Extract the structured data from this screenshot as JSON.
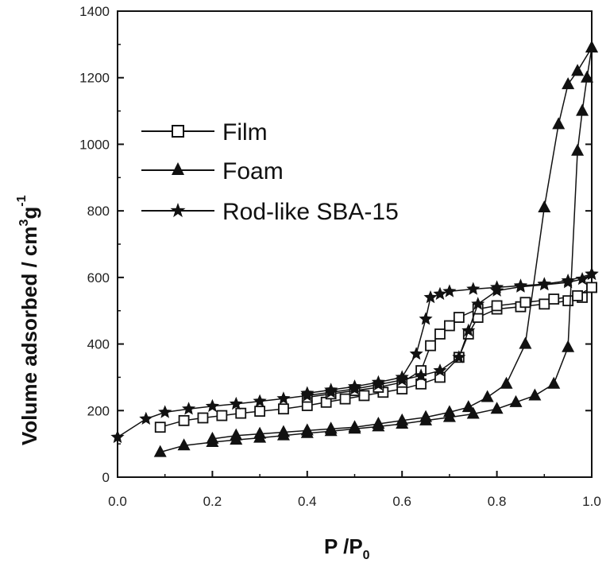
{
  "chart_data": {
    "type": "line",
    "xlabel": "P/P0",
    "ylabel": "Volume adsorbed / cm3g-1",
    "xlim": [
      0.0,
      1.0
    ],
    "ylim": [
      0,
      1400
    ],
    "x_ticks": [
      "0.0",
      "0.2",
      "0.4",
      "0.6",
      "0.8",
      "1.0"
    ],
    "y_ticks": [
      "0",
      "200",
      "400",
      "600",
      "800",
      "1000",
      "1200",
      "1400"
    ],
    "legend_position": "upper-left",
    "series": [
      {
        "name": "Film",
        "marker": "open-square",
        "adsorption": [
          [
            0.09,
            150
          ],
          [
            0.14,
            170
          ],
          [
            0.18,
            178
          ],
          [
            0.22,
            185
          ],
          [
            0.26,
            192
          ],
          [
            0.3,
            198
          ],
          [
            0.35,
            205
          ],
          [
            0.4,
            215
          ],
          [
            0.44,
            225
          ],
          [
            0.48,
            235
          ],
          [
            0.52,
            245
          ],
          [
            0.56,
            255
          ],
          [
            0.6,
            265
          ],
          [
            0.64,
            280
          ],
          [
            0.68,
            300
          ],
          [
            0.72,
            360
          ],
          [
            0.74,
            430
          ],
          [
            0.76,
            480
          ],
          [
            0.8,
            505
          ],
          [
            0.85,
            512
          ],
          [
            0.9,
            520
          ],
          [
            0.95,
            530
          ],
          [
            0.98,
            540
          ],
          [
            1.0,
            570
          ]
        ],
        "desorption": [
          [
            1.0,
            570
          ],
          [
            0.97,
            545
          ],
          [
            0.92,
            535
          ],
          [
            0.86,
            525
          ],
          [
            0.8,
            515
          ],
          [
            0.76,
            505
          ],
          [
            0.72,
            480
          ],
          [
            0.7,
            455
          ],
          [
            0.68,
            430
          ],
          [
            0.66,
            395
          ],
          [
            0.64,
            320
          ],
          [
            0.6,
            285
          ],
          [
            0.55,
            270
          ],
          [
            0.5,
            260
          ],
          [
            0.45,
            250
          ],
          [
            0.4,
            240
          ]
        ]
      },
      {
        "name": "Foam",
        "marker": "filled-triangle",
        "adsorption": [
          [
            0.09,
            75
          ],
          [
            0.14,
            95
          ],
          [
            0.2,
            105
          ],
          [
            0.25,
            112
          ],
          [
            0.3,
            118
          ],
          [
            0.35,
            125
          ],
          [
            0.4,
            132
          ],
          [
            0.45,
            138
          ],
          [
            0.5,
            145
          ],
          [
            0.55,
            152
          ],
          [
            0.6,
            160
          ],
          [
            0.65,
            170
          ],
          [
            0.7,
            180
          ],
          [
            0.75,
            190
          ],
          [
            0.8,
            205
          ],
          [
            0.84,
            225
          ],
          [
            0.88,
            245
          ],
          [
            0.92,
            280
          ],
          [
            0.95,
            390
          ],
          [
            0.97,
            980
          ],
          [
            0.98,
            1100
          ],
          [
            0.99,
            1200
          ],
          [
            1.0,
            1290
          ]
        ],
        "desorption": [
          [
            1.0,
            1290
          ],
          [
            0.97,
            1220
          ],
          [
            0.95,
            1180
          ],
          [
            0.93,
            1060
          ],
          [
            0.9,
            810
          ],
          [
            0.86,
            400
          ],
          [
            0.82,
            280
          ],
          [
            0.78,
            240
          ],
          [
            0.74,
            210
          ],
          [
            0.7,
            195
          ],
          [
            0.65,
            180
          ],
          [
            0.6,
            170
          ],
          [
            0.55,
            160
          ],
          [
            0.5,
            150
          ],
          [
            0.45,
            145
          ],
          [
            0.4,
            140
          ],
          [
            0.35,
            135
          ],
          [
            0.3,
            130
          ],
          [
            0.25,
            125
          ],
          [
            0.2,
            115
          ]
        ]
      },
      {
        "name": "Rod-like SBA-15",
        "marker": "star",
        "adsorption": [
          [
            0.0,
            120
          ],
          [
            0.06,
            175
          ],
          [
            0.1,
            195
          ],
          [
            0.15,
            205
          ],
          [
            0.2,
            213
          ],
          [
            0.25,
            220
          ],
          [
            0.3,
            228
          ],
          [
            0.35,
            236
          ],
          [
            0.4,
            245
          ],
          [
            0.45,
            255
          ],
          [
            0.5,
            265
          ],
          [
            0.55,
            278
          ],
          [
            0.6,
            292
          ],
          [
            0.64,
            305
          ],
          [
            0.68,
            320
          ],
          [
            0.72,
            360
          ],
          [
            0.74,
            440
          ],
          [
            0.76,
            520
          ],
          [
            0.8,
            560
          ],
          [
            0.85,
            572
          ],
          [
            0.9,
            578
          ],
          [
            0.95,
            585
          ],
          [
            0.98,
            595
          ],
          [
            1.0,
            610
          ]
        ],
        "desorption": [
          [
            1.0,
            610
          ],
          [
            0.95,
            590
          ],
          [
            0.9,
            580
          ],
          [
            0.85,
            575
          ],
          [
            0.8,
            570
          ],
          [
            0.75,
            565
          ],
          [
            0.7,
            558
          ],
          [
            0.68,
            550
          ],
          [
            0.66,
            540
          ],
          [
            0.65,
            475
          ],
          [
            0.63,
            370
          ],
          [
            0.6,
            300
          ],
          [
            0.55,
            285
          ],
          [
            0.5,
            272
          ],
          [
            0.45,
            262
          ],
          [
            0.4,
            252
          ]
        ]
      }
    ]
  },
  "legend": {
    "film": "Film",
    "foam": "Foam",
    "rod": "Rod-like SBA-15"
  },
  "axis_titles": {
    "x_main": "P /P",
    "x_sub": "0",
    "y_main": "Volume adsorbed / cm",
    "y_sup1": "3",
    "y_mid": "g",
    "y_sup2": "-1"
  }
}
